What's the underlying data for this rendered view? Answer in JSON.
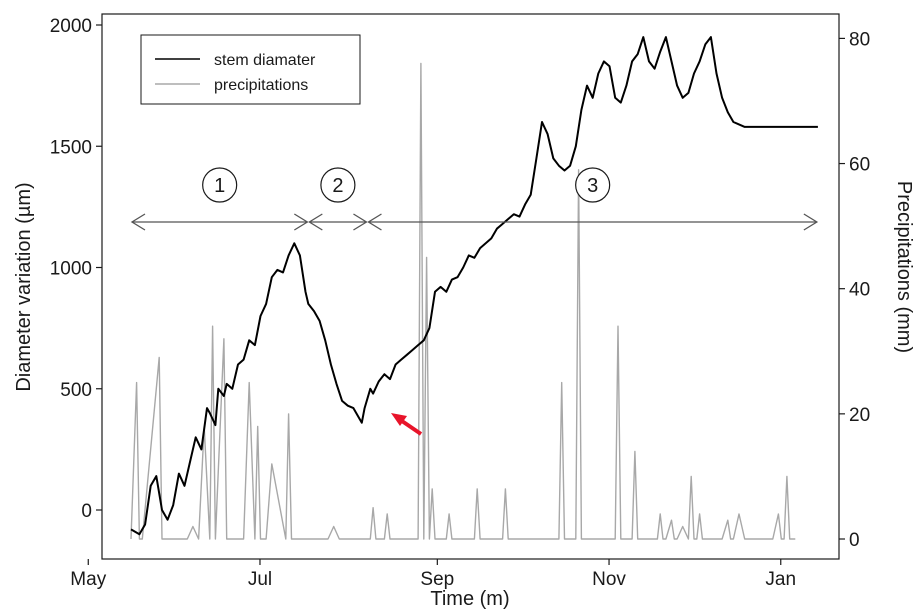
{
  "chart_data": {
    "type": "line",
    "xlabel": "Time (m)",
    "ylabel_left": "Diameter variation (µm)",
    "ylabel_right": "Precipitations (mm)",
    "xlim": [
      0,
      244
    ],
    "ylim_left": [
      -180,
      2050
    ],
    "ylim_right": [
      -2.5,
      83
    ],
    "x_ticks": [
      {
        "label": "May",
        "x": 31
      },
      {
        "label": "Jul",
        "x": 92
      },
      {
        "label": "Sep",
        "x": 155
      },
      {
        "label": "Nov",
        "x": 216
      },
      {
        "label": "Jan",
        "x": 277
      }
    ],
    "y_ticks_left": [
      0,
      500,
      1000,
      1500,
      2000
    ],
    "y_ticks_right": [
      0,
      20,
      40,
      60,
      80
    ],
    "legend": {
      "position": "top-left",
      "entries": [
        {
          "label": "stem diamater",
          "color": "#000000"
        },
        {
          "label": "precipitations",
          "color": "#a8a8a8"
        }
      ]
    },
    "phases": [
      {
        "label": "1",
        "x_start": 0,
        "x_end": 63
      },
      {
        "label": "2",
        "x_start": 63,
        "x_end": 84
      },
      {
        "label": "3",
        "x_start": 84,
        "x_end": 244
      }
    ],
    "series": [
      {
        "name": "stem diamater",
        "color": "#000000",
        "axis": "left",
        "x": [
          0,
          3,
          5,
          7,
          9,
          11,
          13,
          15,
          17,
          19,
          21,
          23,
          25,
          27,
          28,
          30,
          31,
          33,
          34,
          36,
          38,
          40,
          42,
          44,
          46,
          48,
          50,
          52,
          54,
          56,
          58,
          60,
          62,
          63,
          65,
          67,
          69,
          71,
          73,
          75,
          77,
          79,
          81,
          82,
          83,
          85,
          86,
          88,
          90,
          92,
          94,
          96,
          98,
          100,
          102,
          104,
          106,
          108,
          110,
          112,
          114,
          116,
          118,
          120,
          122,
          124,
          126,
          128,
          130,
          132,
          134,
          136,
          138,
          140,
          142,
          144,
          146,
          148,
          150,
          152,
          154,
          156,
          158,
          160,
          162,
          164,
          166,
          168,
          170,
          172,
          174,
          176,
          178,
          180,
          182,
          184,
          186,
          188,
          190,
          192,
          194,
          196,
          198,
          200,
          202,
          204,
          206,
          208,
          210,
          212,
          214,
          216,
          218,
          220,
          222,
          224,
          226,
          228,
          230,
          232,
          234,
          236,
          238,
          240,
          242,
          244
        ],
        "y": [
          -80,
          -100,
          -60,
          100,
          140,
          0,
          -40,
          20,
          150,
          100,
          200,
          300,
          250,
          420,
          400,
          350,
          500,
          470,
          520,
          500,
          600,
          620,
          700,
          680,
          800,
          850,
          960,
          990,
          980,
          1050,
          1100,
          1050,
          900,
          850,
          820,
          780,
          700,
          600,
          520,
          450,
          430,
          420,
          380,
          360,
          420,
          500,
          480,
          530,
          560,
          540,
          600,
          620,
          640,
          660,
          680,
          700,
          750,
          900,
          920,
          900,
          950,
          960,
          1000,
          1050,
          1040,
          1080,
          1100,
          1120,
          1160,
          1180,
          1200,
          1220,
          1210,
          1260,
          1300,
          1450,
          1600,
          1550,
          1450,
          1420,
          1400,
          1420,
          1500,
          1650,
          1750,
          1700,
          1800,
          1850,
          1830,
          1700,
          1680,
          1750,
          1850,
          1880,
          1950,
          1850,
          1820,
          1890,
          1950,
          1850,
          1750,
          1700,
          1720,
          1800,
          1850,
          1920,
          1950,
          1800,
          1700,
          1640,
          1600,
          1590,
          1580,
          1580,
          1580,
          1580,
          1580,
          1580,
          1580,
          1580,
          1580,
          1580,
          1580,
          1580,
          1580,
          1580
        ]
      },
      {
        "name": "precipitations",
        "color": "#a8a8a8",
        "axis": "right",
        "x": [
          0,
          2,
          3,
          4,
          10,
          11,
          12,
          20,
          22,
          24,
          26,
          28,
          29,
          30,
          33,
          34,
          35,
          40,
          42,
          44,
          45,
          46,
          48,
          50,
          55,
          56,
          57,
          62,
          63,
          64,
          70,
          72,
          74,
          80,
          85,
          86,
          87,
          90,
          91,
          92,
          100,
          102,
          103,
          104,
          105,
          106,
          107,
          108,
          110,
          112,
          113,
          114,
          120,
          122,
          123,
          124,
          130,
          132,
          133,
          134,
          150,
          152,
          153,
          154,
          156,
          158,
          159,
          160,
          170,
          172,
          173,
          174,
          176,
          178,
          179,
          180,
          185,
          187,
          188,
          189,
          190,
          192,
          193,
          194,
          196,
          198,
          199,
          200,
          201,
          202,
          203,
          204,
          206,
          210,
          212,
          213,
          214,
          216,
          218,
          219,
          220,
          228,
          230,
          231,
          232,
          233,
          234,
          236
        ],
        "y": [
          0,
          25,
          0,
          0,
          29,
          0,
          0,
          0,
          2,
          0,
          18,
          0,
          34,
          0,
          32,
          0,
          0,
          0,
          25,
          0,
          18,
          0,
          0,
          12,
          0,
          20,
          0,
          0,
          0,
          0,
          0,
          2,
          0,
          0,
          0,
          5,
          0,
          0,
          4,
          0,
          0,
          0,
          76,
          0,
          45,
          0,
          8,
          0,
          0,
          0,
          4,
          0,
          0,
          0,
          8,
          0,
          0,
          0,
          8,
          0,
          0,
          0,
          25,
          0,
          0,
          0,
          59,
          0,
          0,
          0,
          34,
          0,
          0,
          0,
          14,
          0,
          0,
          0,
          4,
          0,
          0,
          3,
          0,
          0,
          2,
          0,
          10,
          0,
          0,
          4,
          0,
          0,
          0,
          0,
          3,
          0,
          0,
          4,
          0,
          0,
          0,
          0,
          4,
          0,
          0,
          10,
          0,
          0
        ]
      }
    ]
  }
}
